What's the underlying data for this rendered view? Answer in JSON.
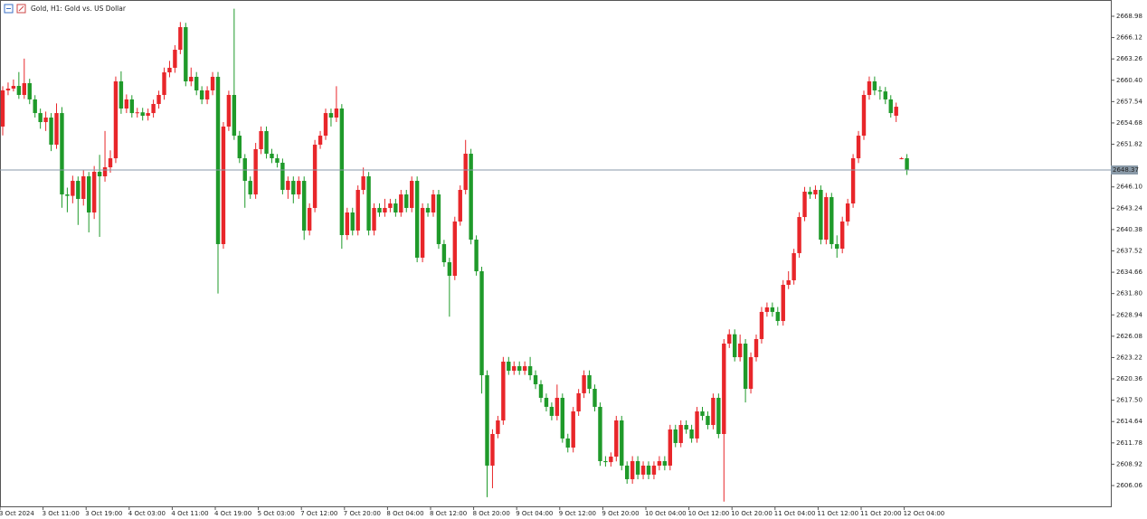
{
  "chart_data": {
    "type": "candlestick",
    "title": "Gold, H1: Gold vs. US Dollar",
    "categories": [
      "3 Oct 2024",
      null,
      null,
      null,
      null,
      null,
      null,
      null,
      "3 Oct 11:00",
      null,
      null,
      null,
      null,
      null,
      null,
      null,
      "3 Oct 19:00",
      null,
      null,
      null,
      null,
      null,
      null,
      null,
      "4 Oct 03:00",
      null,
      null,
      null,
      null,
      null,
      null,
      null,
      "4 Oct 11:00",
      null,
      null,
      null,
      null,
      null,
      null,
      null,
      "4 Oct 19:00",
      null,
      null,
      null,
      null,
      null,
      null,
      null,
      "5 Oct 03:00",
      null,
      null,
      null,
      null,
      null,
      null,
      null,
      "7 Oct 12:00",
      null,
      null,
      null,
      null,
      null,
      null,
      null,
      "7 Oct 20:00",
      null,
      null,
      null,
      null,
      null,
      null,
      null,
      "8 Oct 04:00",
      null,
      null,
      null,
      null,
      null,
      null,
      null,
      "8 Oct 12:00",
      null,
      null,
      null,
      null,
      null,
      null,
      null,
      "8 Oct 20:00",
      null,
      null,
      null,
      null,
      null,
      null,
      null,
      "9 Oct 04:00",
      null,
      null,
      null,
      null,
      null,
      null,
      null,
      "9 Oct 12:00",
      null,
      null,
      null,
      null,
      null,
      null,
      null,
      "9 Oct 20:00",
      null,
      null,
      null,
      null,
      null,
      null,
      null,
      "10 Oct 04:00",
      null,
      null,
      null,
      null,
      null,
      null,
      null,
      "10 Oct 12:00",
      null,
      null,
      null,
      null,
      null,
      null,
      null,
      "10 Oct 20:00",
      null,
      null,
      null,
      null,
      null,
      null,
      null,
      "11 Oct 04:00",
      null,
      null,
      null,
      null,
      null,
      null,
      null,
      "11 Oct 12:00",
      null,
      null,
      null,
      null,
      null,
      null,
      null,
      "11 Oct 20:00",
      null,
      null,
      null,
      null,
      null,
      null,
      null,
      "12 Oct 04:00"
    ],
    "open": [
      2654.19,
      2659.04,
      2659.28,
      2659.64,
      2658.43,
      2660.01,
      2657.83,
      2656.0,
      2654.79,
      2655.4,
      2651.76,
      2656.0,
      2645.09,
      2644.9,
      2646.91,
      2644.49,
      2647.52,
      2642.67,
      2648.13,
      2647.52,
      2648.73,
      2649.94,
      2660.25,
      2656.61,
      2657.83,
      2656.0,
      2656.1,
      2655.64,
      2656.0,
      2657.22,
      2658.43,
      2661.46,
      2662.07,
      2664.49,
      2667.52,
      2660.25,
      2660.86,
      2659.04,
      2657.83,
      2659.04,
      2660.86,
      2638.43,
      2654.19,
      2658.43,
      2652.97,
      2649.94,
      2646.91,
      2645.09,
      2651.16,
      2653.58,
      2650.55,
      2649.94,
      2649.34,
      2645.7,
      2646.91,
      2645.09,
      2646.91,
      2640.25,
      2643.28,
      2651.76,
      2652.97,
      2656.0,
      2655.4,
      2656.61,
      2639.64,
      2642.67,
      2640.25,
      2645.7,
      2647.52,
      2640.25,
      2643.28,
      2642.67,
      2643.28,
      2643.88,
      2642.67,
      2645.09,
      2643.28,
      2646.91,
      2636.61,
      2643.28,
      2642.67,
      2645.09,
      2638.43,
      2636.0,
      2634.18,
      2641.46,
      2645.7,
      2650.55,
      2639.03,
      2634.79,
      2620.85,
      2608.73,
      2612.97,
      2614.79,
      2622.67,
      2621.45,
      2622.06,
      2621.45,
      2622.06,
      2620.85,
      2619.64,
      2617.82,
      2616.61,
      2615.4,
      2617.82,
      2612.37,
      2611.15,
      2616.0,
      2618.43,
      2620.85,
      2619.03,
      2616.61,
      2609.33,
      2609.2,
      2609.94,
      2614.79,
      2608.73,
      2606.91,
      2609.33,
      2607.52,
      2608.73,
      2607.52,
      2608.73,
      2609.33,
      2608.73,
      2613.58,
      2611.76,
      2614.18,
      2613.58,
      2612.37,
      2616.0,
      2615.4,
      2614.18,
      2617.82,
      2612.97,
      2625.09,
      2626.34,
      2623.27,
      2625.09,
      2619.03,
      2623.27,
      2625.7,
      2629.34,
      2629.94,
      2629.34,
      2628.12,
      2632.97,
      2633.58,
      2637.22,
      2642.06,
      2645.46,
      2645.09,
      2645.7,
      2639.03,
      2644.73,
      2638.43,
      2637.82,
      2641.46,
      2643.88,
      2649.94,
      2652.97,
      2658.43,
      2660.25,
      2659.04,
      2658.9,
      2657.83,
      2655.64,
      2649.94,
      2649.94
    ],
    "high": [
      2659.6,
      2660.1,
      2660.5,
      2661.5,
      2663.3,
      2660.6,
      2658.4,
      2656.6,
      2656.2,
      2656.0,
      2657.3,
      2656.8,
      2646.0,
      2647.6,
      2647.5,
      2648.3,
      2648.1,
      2648.9,
      2650.4,
      2653.6,
      2651.0,
      2660.9,
      2661.6,
      2658.5,
      2658.4,
      2656.7,
      2656.7,
      2656.6,
      2657.8,
      2659.0,
      2662.1,
      2663.0,
      2665.1,
      2668.2,
      2668.1,
      2662.1,
      2661.5,
      2659.6,
      2659.6,
      2661.5,
      2661.5,
      2654.8,
      2659.0,
      2670.0,
      2653.6,
      2650.5,
      2647.5,
      2652.0,
      2654.2,
      2654.2,
      2651.2,
      2650.5,
      2649.9,
      2647.5,
      2647.5,
      2647.5,
      2647.5,
      2643.9,
      2652.4,
      2653.6,
      2656.6,
      2656.6,
      2659.6,
      2657.2,
      2643.3,
      2643.3,
      2646.3,
      2648.7,
      2648.1,
      2643.9,
      2643.9,
      2644.5,
      2644.5,
      2644.5,
      2645.7,
      2645.7,
      2647.5,
      2647.5,
      2643.9,
      2643.9,
      2645.7,
      2645.7,
      2639.0,
      2636.6,
      2642.1,
      2646.3,
      2652.4,
      2651.2,
      2639.6,
      2635.4,
      2621.5,
      2613.6,
      2615.4,
      2623.3,
      2623.3,
      2622.7,
      2622.7,
      2622.7,
      2623.3,
      2621.5,
      2620.2,
      2618.4,
      2617.2,
      2619.6,
      2618.4,
      2613.0,
      2616.6,
      2619.0,
      2621.5,
      2621.5,
      2619.6,
      2617.2,
      2610.0,
      2610.5,
      2615.4,
      2615.4,
      2609.3,
      2610.0,
      2610.0,
      2609.3,
      2609.3,
      2609.3,
      2610.0,
      2610.0,
      2614.2,
      2614.2,
      2614.8,
      2614.8,
      2614.2,
      2616.6,
      2616.6,
      2616.0,
      2618.4,
      2618.4,
      2625.7,
      2627.0,
      2627.0,
      2626.3,
      2625.7,
      2623.9,
      2626.3,
      2630.0,
      2630.6,
      2630.6,
      2630.0,
      2633.6,
      2634.8,
      2637.8,
      2642.7,
      2646.1,
      2646.1,
      2646.3,
      2646.3,
      2645.3,
      2645.3,
      2639.6,
      2642.1,
      2644.5,
      2650.5,
      2653.6,
      2659.0,
      2660.9,
      2660.9,
      2659.6,
      2659.5,
      2658.4,
      2657.4,
      2650.1,
      2650.5
    ],
    "low": [
      2653.0,
      2658.4,
      2658.9,
      2657.9,
      2657.9,
      2657.2,
      2655.4,
      2653.9,
      2653.6,
      2650.9,
      2651.2,
      2643.3,
      2642.7,
      2643.9,
      2641.0,
      2643.6,
      2640.0,
      2641.8,
      2639.4,
      2646.8,
      2648.0,
      2649.3,
      2655.9,
      2656.0,
      2655.4,
      2655.4,
      2655.0,
      2655.0,
      2655.4,
      2656.6,
      2657.8,
      2660.8,
      2661.4,
      2663.9,
      2659.6,
      2659.6,
      2658.4,
      2657.2,
      2657.2,
      2658.4,
      2631.8,
      2637.8,
      2653.6,
      2652.4,
      2649.3,
      2643.3,
      2644.5,
      2644.5,
      2650.5,
      2649.9,
      2649.3,
      2648.7,
      2645.1,
      2644.5,
      2643.9,
      2644.5,
      2639.0,
      2639.6,
      2642.7,
      2651.2,
      2652.4,
      2654.2,
      2654.8,
      2637.8,
      2639.0,
      2639.6,
      2639.6,
      2645.1,
      2639.6,
      2639.6,
      2642.1,
      2642.1,
      2642.7,
      2642.1,
      2642.1,
      2642.7,
      2642.7,
      2636.0,
      2636.0,
      2642.1,
      2642.1,
      2637.8,
      2635.4,
      2628.7,
      2633.6,
      2640.9,
      2645.1,
      2638.4,
      2634.2,
      2618.4,
      2604.5,
      2605.7,
      2612.4,
      2614.2,
      2620.9,
      2620.9,
      2620.9,
      2620.9,
      2620.2,
      2619.0,
      2617.2,
      2616.0,
      2614.8,
      2614.8,
      2611.8,
      2610.5,
      2610.5,
      2615.4,
      2617.8,
      2618.4,
      2616.0,
      2608.7,
      2608.6,
      2608.6,
      2609.3,
      2608.1,
      2606.3,
      2606.3,
      2606.9,
      2606.9,
      2606.9,
      2606.9,
      2608.1,
      2608.1,
      2608.1,
      2611.2,
      2611.2,
      2613.0,
      2611.8,
      2611.8,
      2614.8,
      2613.6,
      2613.6,
      2612.4,
      2603.9,
      2624.5,
      2622.7,
      2622.7,
      2617.2,
      2618.4,
      2622.7,
      2625.1,
      2628.7,
      2628.7,
      2627.5,
      2627.5,
      2632.4,
      2633.0,
      2636.6,
      2641.5,
      2644.5,
      2644.5,
      2638.4,
      2638.4,
      2637.8,
      2636.6,
      2637.2,
      2640.9,
      2643.3,
      2649.3,
      2652.4,
      2657.8,
      2658.4,
      2657.8,
      2657.2,
      2655.4,
      2654.8,
      2649.8,
      2647.7
    ],
    "close": [
      2659.04,
      2659.28,
      2659.64,
      2658.43,
      2660.01,
      2657.83,
      2656.0,
      2654.79,
      2655.4,
      2651.76,
      2656.0,
      2645.09,
      2644.9,
      2646.91,
      2644.49,
      2647.52,
      2642.67,
      2648.13,
      2647.52,
      2648.73,
      2649.94,
      2660.25,
      2656.61,
      2657.83,
      2656.0,
      2656.1,
      2655.64,
      2656.0,
      2657.22,
      2658.43,
      2661.46,
      2662.07,
      2664.49,
      2667.52,
      2660.25,
      2660.86,
      2659.04,
      2657.83,
      2659.04,
      2660.86,
      2638.43,
      2654.19,
      2658.43,
      2652.97,
      2649.94,
      2646.91,
      2645.09,
      2651.16,
      2653.58,
      2650.55,
      2649.94,
      2649.34,
      2645.7,
      2646.91,
      2645.09,
      2646.91,
      2640.25,
      2643.28,
      2651.76,
      2652.97,
      2656.0,
      2655.4,
      2656.61,
      2639.64,
      2642.67,
      2640.25,
      2645.7,
      2647.52,
      2640.25,
      2643.28,
      2642.67,
      2643.28,
      2643.88,
      2642.67,
      2645.09,
      2643.28,
      2646.91,
      2636.61,
      2643.28,
      2642.67,
      2645.09,
      2638.43,
      2636.0,
      2634.18,
      2641.46,
      2645.7,
      2650.55,
      2639.03,
      2634.79,
      2620.85,
      2608.73,
      2612.97,
      2614.79,
      2622.67,
      2621.45,
      2622.06,
      2621.45,
      2622.06,
      2620.85,
      2619.64,
      2617.82,
      2616.61,
      2615.4,
      2617.82,
      2612.37,
      2611.15,
      2616.0,
      2618.43,
      2620.85,
      2619.03,
      2616.61,
      2609.33,
      2609.2,
      2609.94,
      2614.79,
      2608.73,
      2606.91,
      2609.33,
      2607.52,
      2608.73,
      2607.52,
      2608.73,
      2609.33,
      2608.73,
      2613.58,
      2611.76,
      2614.18,
      2613.58,
      2612.37,
      2616.0,
      2615.4,
      2614.18,
      2617.82,
      2612.97,
      2625.09,
      2626.34,
      2623.27,
      2625.09,
      2619.03,
      2623.27,
      2625.7,
      2629.34,
      2629.94,
      2629.34,
      2628.12,
      2632.97,
      2633.58,
      2637.22,
      2642.06,
      2645.46,
      2645.09,
      2645.7,
      2639.03,
      2644.73,
      2638.43,
      2637.82,
      2641.46,
      2643.88,
      2649.94,
      2652.97,
      2658.43,
      2660.25,
      2659.04,
      2658.9,
      2657.83,
      2656.0,
      2656.85,
      2649.94,
      2648.37
    ],
    "up_color": "#e8262a",
    "down_color": "#1f9a2a",
    "ylim": [
      2603.27,
      2671.16
    ],
    "yticks": [
      2668.98,
      2666.12,
      2663.26,
      {
        "value": 2660.4,
        "label": "2660.40"
      },
      2657.54,
      2654.68,
      2651.82,
      {
        "value": 2646.1,
        "label": "2646.10"
      },
      2643.24,
      2640.38,
      2637.52,
      2634.66,
      {
        "value": 2631.8,
        "label": "2631.80"
      },
      2628.94,
      2626.08,
      2623.22,
      2620.36,
      {
        "value": 2617.5,
        "label": "2617.50"
      },
      2614.64,
      2611.78,
      2608.92,
      2606.06
    ],
    "grid": false
  }
}
